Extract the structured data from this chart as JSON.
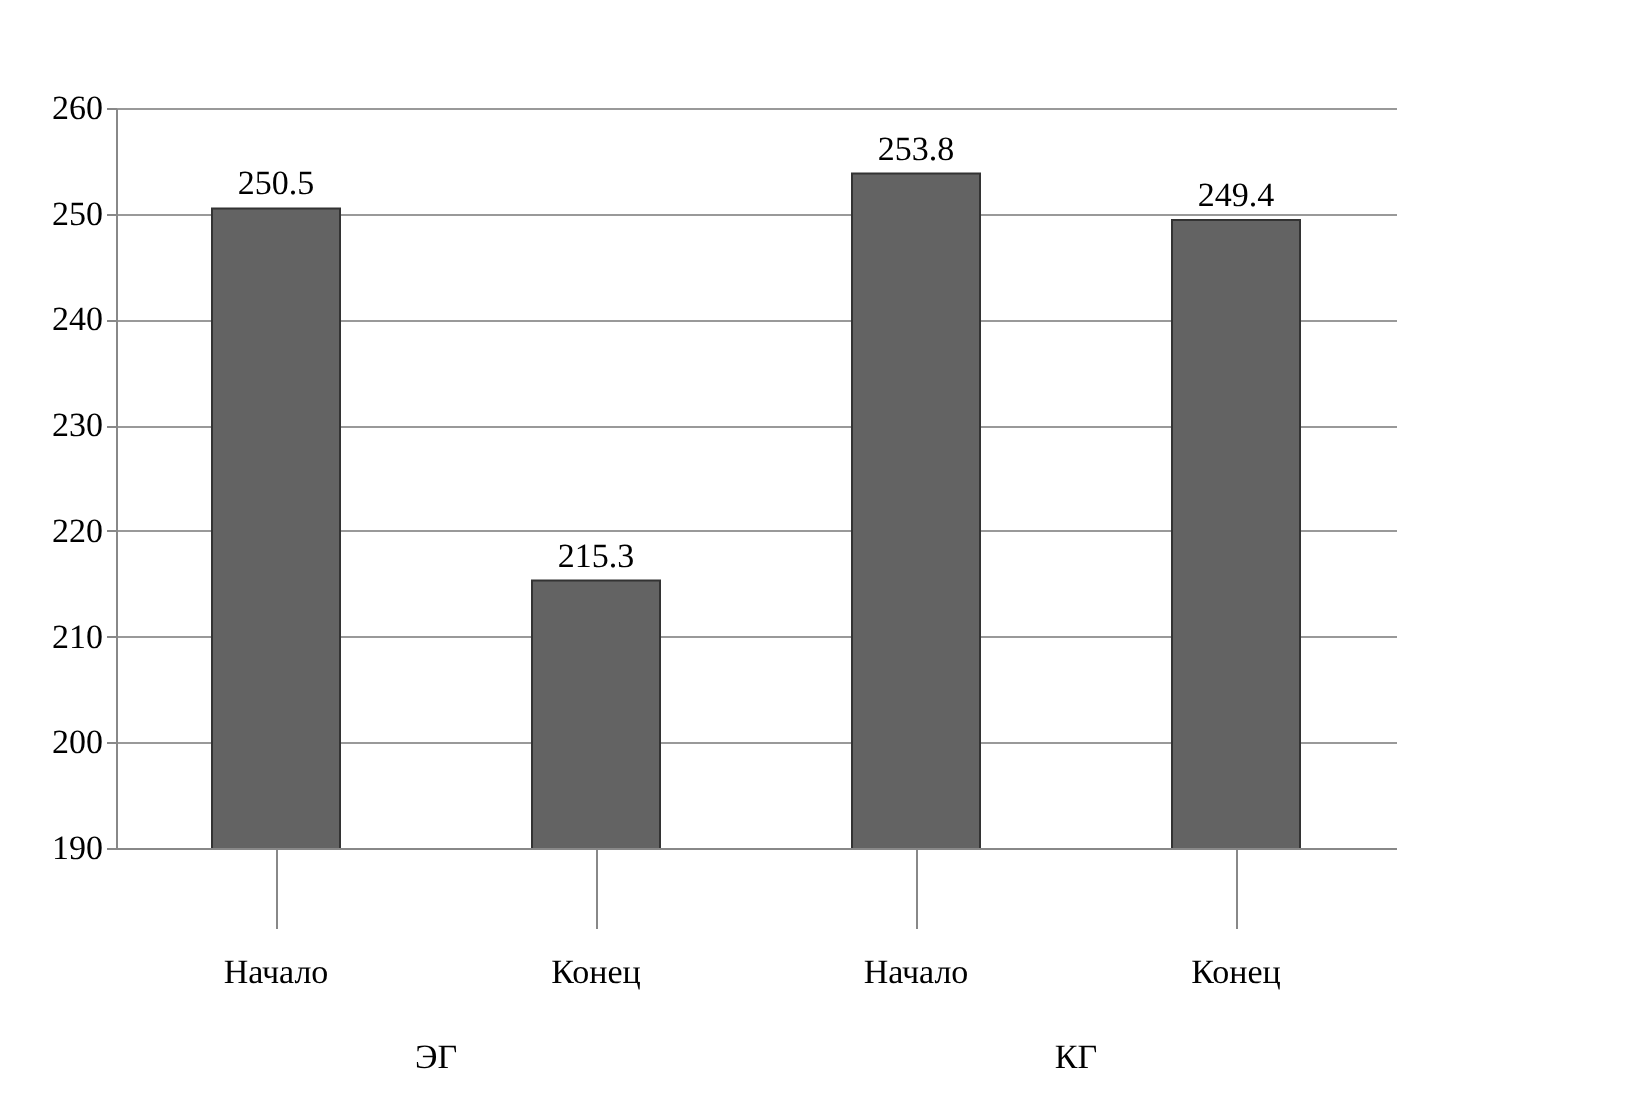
{
  "chart_data": {
    "type": "bar",
    "categories": [
      "Начало",
      "Конец",
      "Начало",
      "Конец"
    ],
    "values": [
      250.5,
      215.3,
      253.8,
      249.4
    ],
    "color": "#636363",
    "ylim": [
      190,
      260
    ],
    "yticks": [
      190,
      200,
      210,
      220,
      230,
      240,
      250,
      260
    ],
    "grid": "y",
    "data_labels": true,
    "annotations": [
      "ЭГ",
      "КГ"
    ]
  }
}
